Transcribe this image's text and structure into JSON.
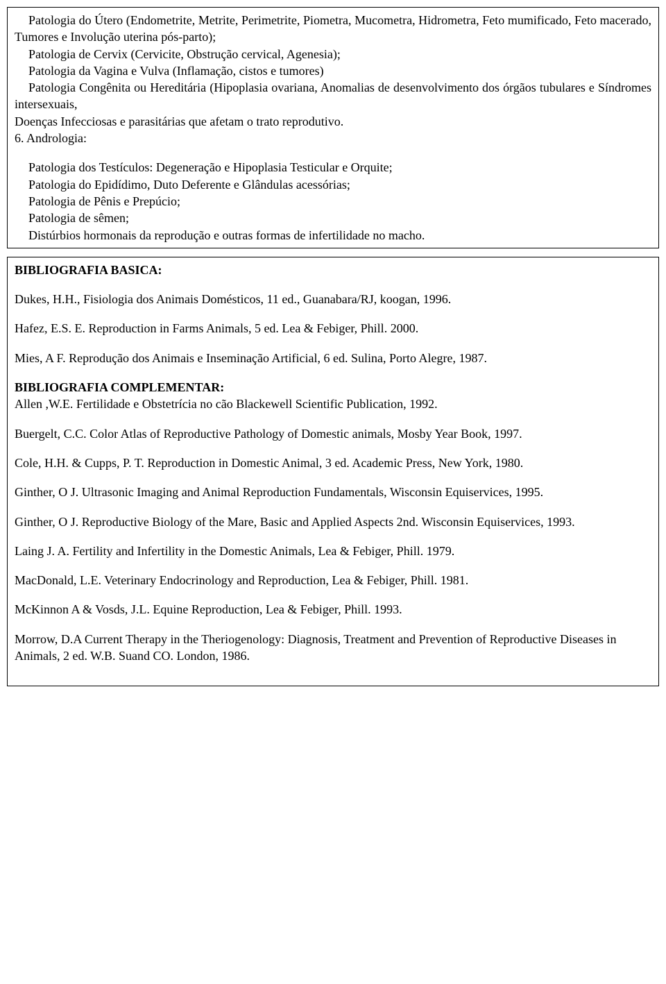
{
  "box1": {
    "p1": "Patologia do Útero (Endometrite, Metrite, Perimetrite, Piometra, Mucometra, Hidrometra, Feto mumificado, Feto macerado, Tumores e Involução uterina pós-parto);",
    "p2": "Patologia de Cervix (Cervicite, Obstrução cervical, Agenesia);",
    "p3": "Patologia da Vagina e Vulva (Inflamação, cistos e tumores)",
    "p4": "Patologia Congênita ou Hereditária (Hipoplasia ovariana, Anomalias de desenvolvimento dos órgãos tubulares e Síndromes intersexuais,",
    "p5": "Doenças Infecciosas e parasitárias que afetam o trato reprodutivo.",
    "p6": "6. Andrologia:",
    "l1": "Patologia dos Testículos: Degeneração e Hipoplasia Testicular e Orquite;",
    "l2": "Patologia do Epidídimo, Duto Deferente e Glândulas acessórias;",
    "l3": "Patologia de Pênis e Prepúcio;",
    "l4": "Patologia de sêmen;",
    "l5": "Distúrbios hormonais da reprodução e outras formas de infertilidade no macho."
  },
  "box2": {
    "h1": "BIBLIOGRAFIA BASICA:",
    "b1": "Dukes, H.H., Fisiologia dos Animais Domésticos, 11 ed., Guanabara/RJ, koogan, 1996.",
    "b2": "Hafez, E.S. E. Reproduction in Farms Animals, 5 ed. Lea & Febiger, Phill. 2000.",
    "b3": "Mies, A F. Reprodução dos Animais e Inseminação Artificial, 6 ed. Sulina, Porto Alegre, 1987.",
    "h2": "BIBLIOGRAFIA COMPLEMENTAR:",
    "c1": "Allen ,W.E. Fertilidade e Obstetrícia no cão Blackewell Scientific Publication, 1992.",
    "c2": "Buergelt, C.C. Color Atlas of Reproductive Pathology of Domestic animals, Mosby Year Book, 1997.",
    "c3": "Cole, H.H. & Cupps, P. T. Reproduction in Domestic Animal, 3 ed. Academic Press, New York, 1980.",
    "c4": "Ginther, O J. Ultrasonic Imaging and Animal Reproduction Fundamentals, Wisconsin Equiservices, 1995.",
    "c5": "Ginther, O J. Reproductive Biology of the Mare, Basic and Applied Aspects 2nd. Wisconsin Equiservices, 1993.",
    "c6": "Laing J. A. Fertility and Infertility in the Domestic Animals, Lea & Febiger, Phill. 1979.",
    "c7": "MacDonald, L.E. Veterinary Endocrinology and Reproduction, Lea & Febiger, Phill. 1981.",
    "c8": "McKinnon A & Vosds, J.L. Equine Reproduction, Lea & Febiger, Phill. 1993.",
    "c9": "Morrow, D.A Current Therapy in the Theriogenology: Diagnosis, Treatment and Prevention of Reproductive Diseases in Animals, 2 ed. W.B. Suand CO. London, 1986."
  }
}
